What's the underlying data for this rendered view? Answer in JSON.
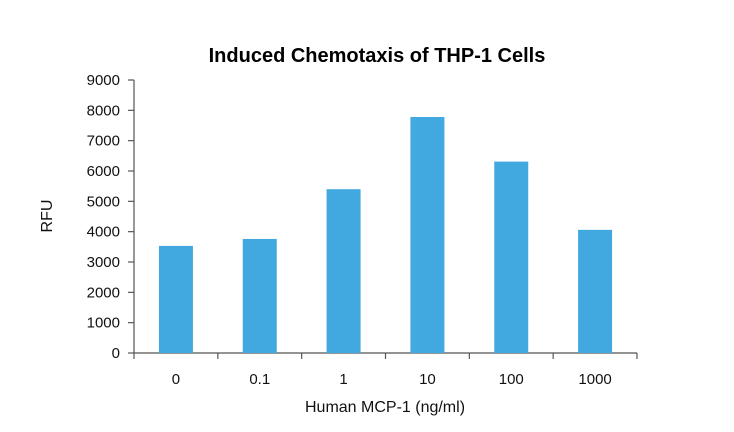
{
  "chart_data": {
    "type": "bar",
    "title": "Induced Chemotaxis of THP-1 Cells",
    "xlabel": "Human MCP-1 (ng/ml)",
    "ylabel": "RFU",
    "categories": [
      "0",
      "0.1",
      "1",
      "10",
      "100",
      "1000"
    ],
    "values": [
      3530,
      3760,
      5400,
      7780,
      6310,
      4060
    ],
    "ylim": [
      0,
      9000
    ],
    "yticks": [
      "0",
      "1000",
      "2000",
      "3000",
      "4000",
      "5000",
      "6000",
      "7000",
      "8000",
      "9000"
    ],
    "grid": false,
    "bar_color": "#42a8e0"
  }
}
